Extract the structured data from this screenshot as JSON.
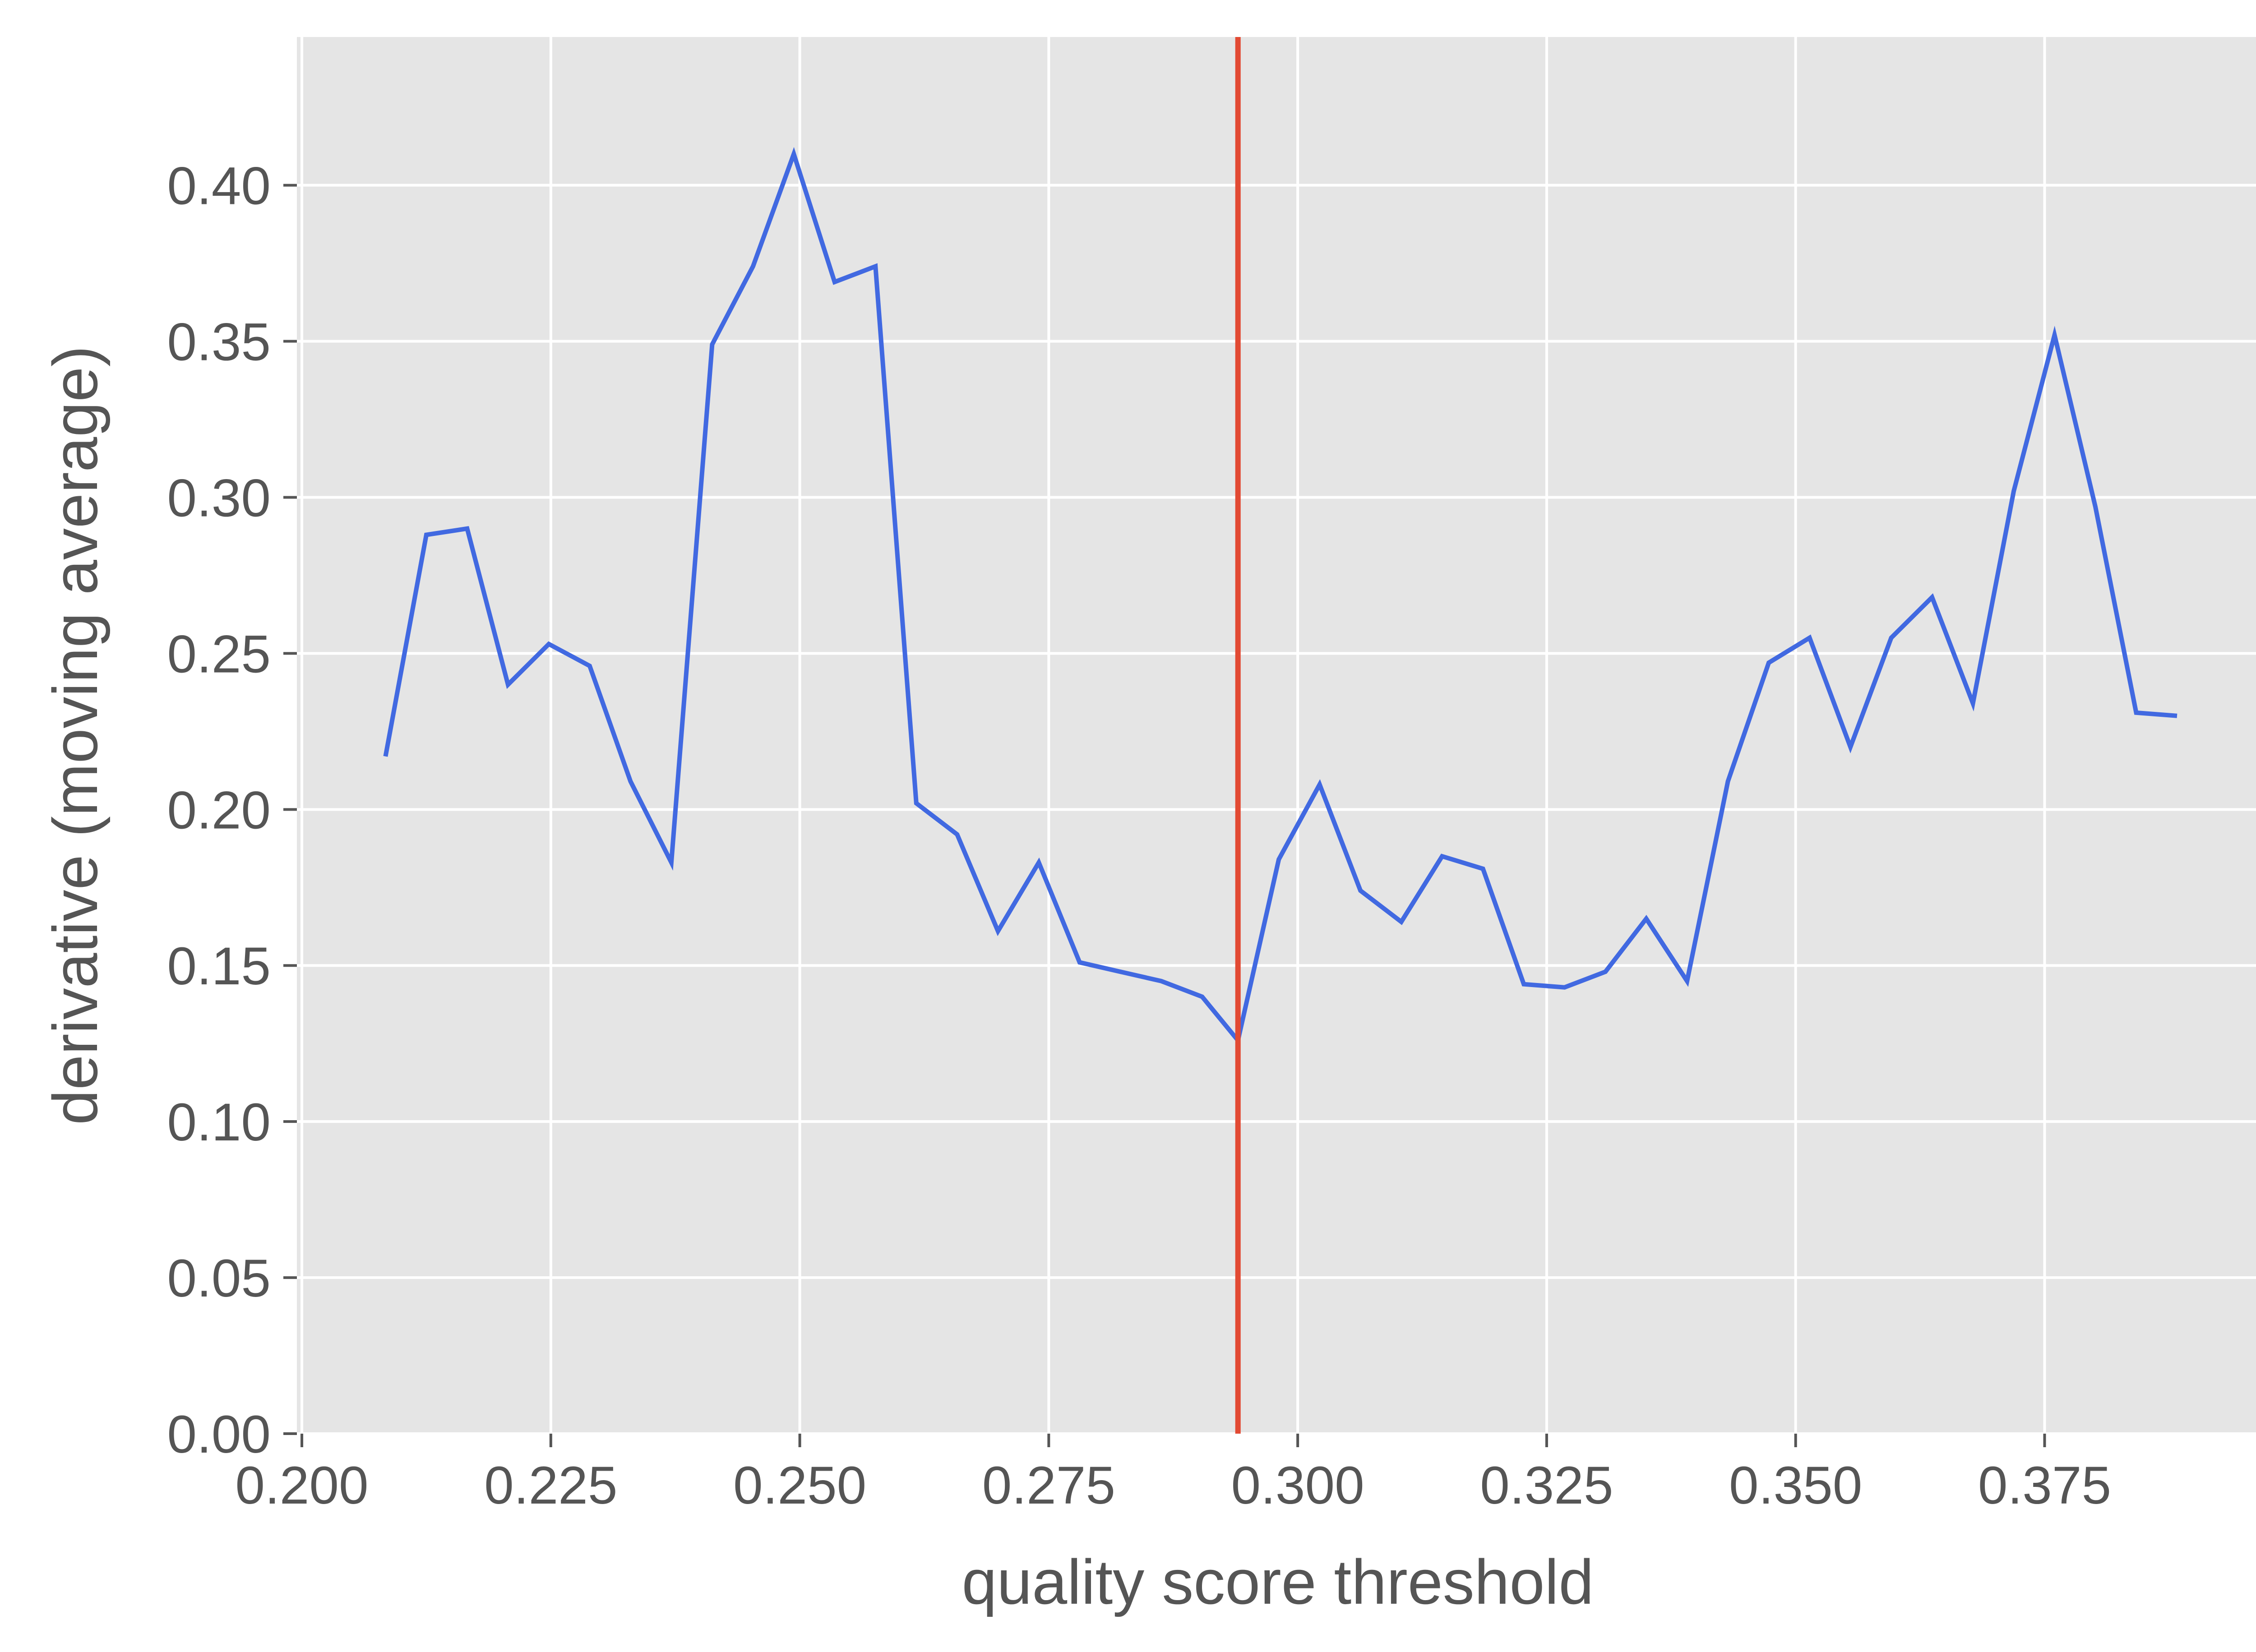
{
  "chart_data": {
    "type": "line",
    "title": "",
    "xlabel": "quality score threshold",
    "ylabel": "derivative (moving average)",
    "xlim": [
      0.1995,
      0.3965
    ],
    "ylim": [
      0.0,
      0.4475
    ],
    "xticks": [
      0.2,
      0.225,
      0.25,
      0.275,
      0.3,
      0.325,
      0.35,
      0.375
    ],
    "xtick_labels": [
      "0.200",
      "0.225",
      "0.250",
      "0.275",
      "0.300",
      "0.325",
      "0.350",
      "0.375"
    ],
    "yticks": [
      0.0,
      0.05,
      0.1,
      0.15,
      0.2,
      0.25,
      0.3,
      0.35,
      0.4
    ],
    "ytick_labels": [
      "0.00",
      "0.05",
      "0.10",
      "0.15",
      "0.20",
      "0.25",
      "0.30",
      "0.35",
      "0.40"
    ],
    "grid": true,
    "vline": 0.294,
    "colors": {
      "plot_background": "#e5e5e5",
      "grid": "#ffffff",
      "line": "#4169e1",
      "vline": "#e24a33",
      "text": "#555555"
    },
    "series": [
      {
        "x": [
          0.2084,
          0.2125,
          0.2166,
          0.2207,
          0.2248,
          0.2289,
          0.233,
          0.2371,
          0.2412,
          0.2453,
          0.2494,
          0.2535,
          0.2576,
          0.2617,
          0.2658,
          0.2699,
          0.274,
          0.2781,
          0.2822,
          0.2863,
          0.2904,
          0.294,
          0.2981,
          0.3022,
          0.3063,
          0.3104,
          0.3145,
          0.3186,
          0.3227,
          0.3268,
          0.3309,
          0.335,
          0.3391,
          0.3432,
          0.3473,
          0.3514,
          0.3555,
          0.3596,
          0.3637,
          0.3678,
          0.3719,
          0.376,
          0.3801,
          0.3842,
          0.3883
        ],
        "values": [
          0.217,
          0.288,
          0.29,
          0.24,
          0.253,
          0.246,
          0.209,
          0.183,
          0.349,
          0.374,
          0.41,
          0.369,
          0.374,
          0.202,
          0.192,
          0.161,
          0.183,
          0.151,
          0.148,
          0.145,
          0.14,
          0.126,
          0.184,
          0.208,
          0.174,
          0.164,
          0.185,
          0.181,
          0.144,
          0.143,
          0.148,
          0.165,
          0.145,
          0.209,
          0.247,
          0.255,
          0.22,
          0.255,
          0.268,
          0.234,
          0.302,
          0.352,
          0.297,
          0.231,
          0.23
        ]
      }
    ]
  }
}
